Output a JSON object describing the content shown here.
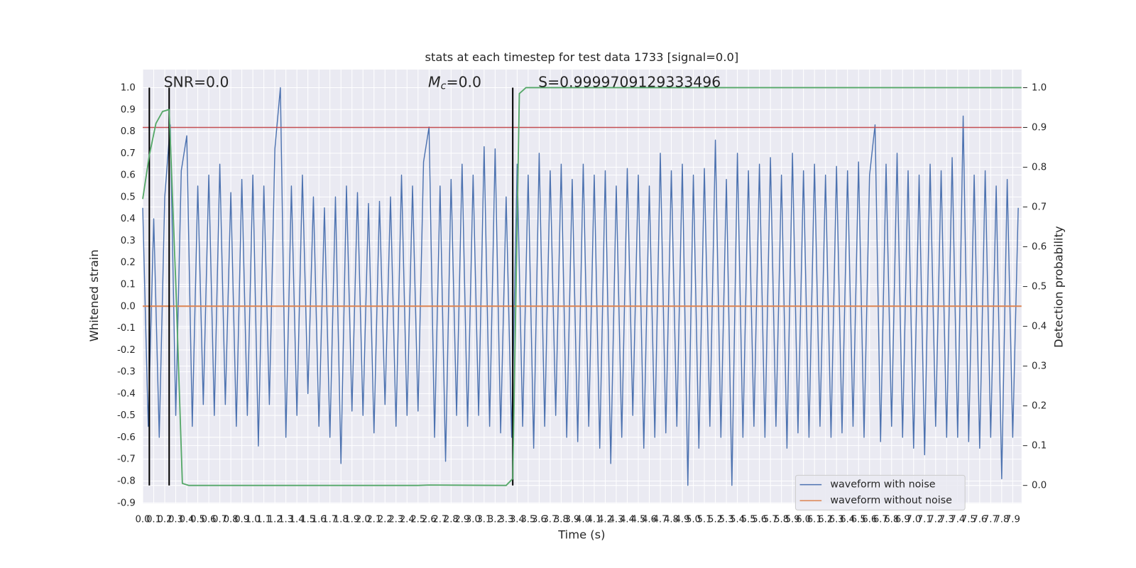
{
  "chart_data": {
    "type": "line",
    "title": "stats at each timestep for test data 1733 [signal=0.0]",
    "x_label": "Time (s)",
    "y_label": "Whitened strain",
    "y2_label": "Detection probability",
    "annotations": {
      "snr": "SNR=0.0",
      "mc": {
        "symbol": "M",
        "subscript": "c",
        "text": "=0.0"
      },
      "s": "S=0.9999709129333496"
    },
    "xlim": [
      0,
      7.98
    ],
    "ylim": [
      -0.903,
      1.083
    ],
    "y2lim": [
      -0.0455,
      1.0455
    ],
    "xticks": [
      {
        "value": 0,
        "label": "0.0"
      },
      0.1,
      0.2,
      0.3,
      0.4,
      0.5,
      0.6,
      0.7,
      0.8,
      0.9,
      {
        "value": 1,
        "label": "1.0"
      },
      1.1,
      1.2,
      1.3,
      1.4,
      1.5,
      1.6,
      1.7,
      1.8,
      1.9,
      {
        "value": 2,
        "label": "2.0"
      },
      2.1,
      2.2,
      2.3,
      2.4,
      2.5,
      2.6,
      2.7,
      2.8,
      2.9,
      {
        "value": 3,
        "label": "3.0"
      },
      3.1,
      3.2,
      3.3,
      3.4,
      3.5,
      3.6,
      3.7,
      3.8,
      3.9,
      {
        "value": 4,
        "label": "4.0"
      },
      4.1,
      4.2,
      4.3,
      4.4,
      4.5,
      4.6,
      4.7,
      4.8,
      4.9,
      {
        "value": 5,
        "label": "5.0"
      },
      5.1,
      5.2,
      5.3,
      5.4,
      5.5,
      5.6,
      5.7,
      5.8,
      5.9,
      {
        "value": 6,
        "label": "6.0"
      },
      6.1,
      6.2,
      6.3,
      6.4,
      6.5,
      6.6,
      6.7,
      6.8,
      6.9,
      {
        "value": 7,
        "label": "7.0"
      },
      7.1,
      7.2,
      7.3,
      7.4,
      7.5,
      7.6,
      7.7,
      7.8,
      7.9
    ],
    "yticks": [
      {
        "value": 1,
        "label": "1.0"
      },
      0.9,
      0.8,
      0.7,
      0.6,
      0.5,
      0.4,
      0.3,
      0.2,
      0.1,
      {
        "value": 0,
        "label": "0.0"
      },
      -0.1,
      -0.2,
      -0.3,
      -0.4,
      -0.5,
      -0.6,
      -0.7,
      -0.8,
      -0.9
    ],
    "y2ticks": [
      {
        "value": 0,
        "label": "0.0"
      },
      0.1,
      0.2,
      0.3,
      0.4,
      0.5,
      0.6,
      0.7,
      0.8,
      0.9,
      {
        "value": 1,
        "label": "1.0"
      }
    ],
    "grid": true,
    "legend_position": "lower right",
    "series": [
      {
        "name": "waveform with noise",
        "color": "#4c72b0",
        "x": [
          0,
          0.05,
          0.1,
          0.15,
          0.2,
          0.25,
          0.3,
          0.35,
          0.4,
          0.45,
          0.5,
          0.55,
          0.6,
          0.65,
          0.7,
          0.75,
          0.8,
          0.85,
          0.9,
          0.95,
          1,
          1.05,
          1.1,
          1.15,
          1.2,
          1.25,
          1.3,
          1.35,
          1.4,
          1.45,
          1.5,
          1.55,
          1.6,
          1.65,
          1.7,
          1.75,
          1.8,
          1.85,
          1.9,
          1.95,
          2,
          2.05,
          2.1,
          2.15,
          2.2,
          2.25,
          2.3,
          2.35,
          2.4,
          2.45,
          2.5,
          2.55,
          2.6,
          2.65,
          2.7,
          2.75,
          2.8,
          2.85,
          2.9,
          2.95,
          3,
          3.05,
          3.1,
          3.15,
          3.2,
          3.25,
          3.3,
          3.35,
          3.4,
          3.45,
          3.5,
          3.55,
          3.6,
          3.65,
          3.7,
          3.75,
          3.8,
          3.85,
          3.9,
          3.95,
          4,
          4.05,
          4.1,
          4.15,
          4.2,
          4.25,
          4.3,
          4.35,
          4.4,
          4.45,
          4.5,
          4.55,
          4.6,
          4.65,
          4.7,
          4.75,
          4.8,
          4.85,
          4.9,
          4.95,
          5,
          5.05,
          5.1,
          5.15,
          5.2,
          5.25,
          5.3,
          5.35,
          5.4,
          5.45,
          5.5,
          5.55,
          5.6,
          5.65,
          5.7,
          5.75,
          5.8,
          5.85,
          5.9,
          5.95,
          6,
          6.05,
          6.1,
          6.15,
          6.2,
          6.25,
          6.3,
          6.35,
          6.4,
          6.45,
          6.5,
          6.55,
          6.6,
          6.65,
          6.7,
          6.75,
          6.8,
          6.85,
          6.9,
          6.95,
          7,
          7.05,
          7.1,
          7.15,
          7.2,
          7.25,
          7.3,
          7.35,
          7.4,
          7.45,
          7.5,
          7.55,
          7.6,
          7.65,
          7.7,
          7.75,
          7.8,
          7.85,
          7.9,
          7.95
        ],
        "values": [
          0.45,
          -0.55,
          0.4,
          -0.6,
          0.5,
          0.83,
          -0.5,
          0.62,
          0.78,
          -0.55,
          0.55,
          -0.45,
          0.6,
          -0.5,
          0.65,
          -0.45,
          0.52,
          -0.55,
          0.58,
          -0.5,
          0.6,
          -0.64,
          0.55,
          -0.45,
          0.72,
          1.0,
          -0.6,
          0.55,
          -0.5,
          0.6,
          -0.4,
          0.5,
          -0.55,
          0.45,
          -0.6,
          0.5,
          -0.72,
          0.55,
          -0.48,
          0.52,
          -0.5,
          0.47,
          -0.58,
          0.48,
          -0.45,
          0.5,
          -0.55,
          0.6,
          -0.5,
          0.55,
          -0.48,
          0.66,
          0.82,
          -0.6,
          0.55,
          -0.71,
          0.58,
          -0.5,
          0.65,
          -0.55,
          0.6,
          -0.5,
          0.73,
          -0.55,
          0.72,
          -0.58,
          0.5,
          -0.6,
          0.65,
          -0.55,
          0.6,
          -0.65,
          0.7,
          -0.55,
          0.62,
          -0.5,
          0.65,
          -0.6,
          0.58,
          -0.62,
          0.65,
          -0.55,
          0.6,
          -0.65,
          0.62,
          -0.72,
          0.55,
          -0.6,
          0.63,
          -0.5,
          0.6,
          -0.65,
          0.55,
          -0.6,
          0.7,
          -0.58,
          0.62,
          -0.55,
          0.65,
          -0.82,
          0.6,
          -0.65,
          0.63,
          -0.55,
          0.76,
          -0.6,
          0.58,
          -0.82,
          0.7,
          -0.6,
          0.62,
          -0.55,
          0.65,
          -0.6,
          0.68,
          -0.55,
          0.6,
          -0.65,
          0.7,
          -0.58,
          0.62,
          -0.6,
          0.65,
          -0.55,
          0.6,
          -0.6,
          0.64,
          -0.58,
          0.62,
          -0.55,
          0.66,
          -0.6,
          0.6,
          0.83,
          -0.62,
          0.65,
          -0.55,
          0.7,
          -0.6,
          0.62,
          -0.65,
          0.6,
          -0.68,
          0.65,
          -0.55,
          0.62,
          -0.6,
          0.68,
          -0.6,
          0.87,
          -0.62,
          0.6,
          -0.65,
          0.62,
          -0.6,
          0.55,
          -0.79,
          0.58,
          -0.6,
          0.45
        ]
      },
      {
        "name": "waveform without noise",
        "color": "#dd8452",
        "x": [
          0,
          7.98
        ],
        "values": [
          0,
          0
        ]
      }
    ],
    "probability": {
      "color": "#55a868",
      "axis": "y2",
      "x": [
        0,
        0.06,
        0.12,
        0.18,
        0.24,
        0.3,
        0.36,
        0.42,
        2.5,
        2.6,
        3.3,
        3.36,
        3.42,
        3.48,
        7.98
      ],
      "values": [
        0.72,
        0.83,
        0.91,
        0.94,
        0.945,
        0.51,
        0.005,
        0,
        0,
        0.001,
        0,
        0.017,
        0.985,
        1.0,
        1.0
      ]
    },
    "threshold": {
      "value": 0.9,
      "axis": "y2",
      "color": "#c44e52"
    },
    "vlines": {
      "x": [
        0.06,
        0.24,
        3.36
      ],
      "span": [
        0,
        1
      ],
      "axis": "y2",
      "color": "#000000"
    }
  }
}
